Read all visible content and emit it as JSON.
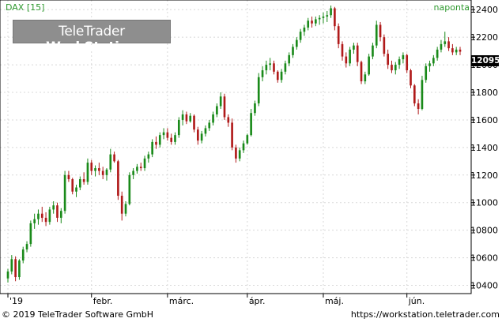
{
  "header": {
    "symbol": "DAX [15]",
    "period": "naponta"
  },
  "logo": {
    "brand": "TeleTrader",
    "product": "WorkStation"
  },
  "footer": {
    "copyright": "© 2019 TeleTrader Software GmbH",
    "website": "https://workstation.teletrader.com"
  },
  "last_price": "12095",
  "colors": {
    "up": "#1a8a1a",
    "down": "#b01a1a",
    "accent_text": "#2f9a2f",
    "grid": "#d8d8d8",
    "axis": "#000000"
  },
  "chart_data": {
    "type": "candlestick",
    "title": "DAX [15]",
    "interval": "naponta",
    "ylim": [
      10340,
      12470
    ],
    "y_ticks": [
      10400,
      10600,
      10800,
      11000,
      11200,
      11400,
      11600,
      11800,
      12000,
      12200,
      12400
    ],
    "x_ticks": [
      {
        "label": "'19",
        "index": 0
      },
      {
        "label": "febr.",
        "index": 22
      },
      {
        "label": "márc.",
        "index": 42
      },
      {
        "label": "ápr.",
        "index": 63
      },
      {
        "label": "máj.",
        "index": 83
      },
      {
        "label": "jún.",
        "index": 105
      }
    ],
    "grid": true,
    "last_value": 12095,
    "ohlc": [
      [
        10450,
        10520,
        10420,
        10500
      ],
      [
        10500,
        10620,
        10480,
        10590
      ],
      [
        10590,
        10610,
        10430,
        10460
      ],
      [
        10460,
        10590,
        10440,
        10580
      ],
      [
        10580,
        10680,
        10560,
        10660
      ],
      [
        10660,
        10720,
        10640,
        10700
      ],
      [
        10700,
        10870,
        10680,
        10850
      ],
      [
        10850,
        10920,
        10810,
        10880
      ],
      [
        10880,
        10950,
        10840,
        10920
      ],
      [
        10920,
        10970,
        10860,
        10890
      ],
      [
        10890,
        10930,
        10830,
        10860
      ],
      [
        10860,
        10970,
        10840,
        10950
      ],
      [
        10950,
        11010,
        10920,
        10980
      ],
      [
        10980,
        11000,
        10860,
        10890
      ],
      [
        10890,
        10960,
        10850,
        10940
      ],
      [
        10940,
        11230,
        10920,
        11200
      ],
      [
        11200,
        11230,
        11150,
        11170
      ],
      [
        11170,
        11180,
        11060,
        11080
      ],
      [
        11080,
        11130,
        11040,
        11110
      ],
      [
        11110,
        11190,
        11090,
        11170
      ],
      [
        11170,
        11220,
        11130,
        11150
      ],
      [
        11150,
        11320,
        11130,
        11290
      ],
      [
        11290,
        11310,
        11200,
        11230
      ],
      [
        11230,
        11270,
        11190,
        11250
      ],
      [
        11250,
        11290,
        11200,
        11230
      ],
      [
        11230,
        11260,
        11170,
        11200
      ],
      [
        11200,
        11250,
        11160,
        11240
      ],
      [
        11240,
        11390,
        11220,
        11350
      ],
      [
        11350,
        11370,
        11290,
        11300
      ],
      [
        11300,
        11310,
        11020,
        11050
      ],
      [
        11050,
        11080,
        10870,
        10920
      ],
      [
        10920,
        11010,
        10900,
        10990
      ],
      [
        10990,
        11220,
        10980,
        11200
      ],
      [
        11200,
        11250,
        11170,
        11230
      ],
      [
        11230,
        11280,
        11210,
        11260
      ],
      [
        11260,
        11290,
        11230,
        11250
      ],
      [
        11250,
        11340,
        11230,
        11320
      ],
      [
        11320,
        11370,
        11290,
        11350
      ],
      [
        11350,
        11460,
        11330,
        11440
      ],
      [
        11440,
        11480,
        11390,
        11420
      ],
      [
        11420,
        11510,
        11400,
        11490
      ],
      [
        11490,
        11540,
        11460,
        11510
      ],
      [
        11510,
        11540,
        11450,
        11470
      ],
      [
        11470,
        11500,
        11420,
        11440
      ],
      [
        11440,
        11510,
        11420,
        11490
      ],
      [
        11490,
        11620,
        11470,
        11600
      ],
      [
        11600,
        11670,
        11560,
        11640
      ],
      [
        11640,
        11660,
        11570,
        11590
      ],
      [
        11590,
        11650,
        11580,
        11630
      ],
      [
        11630,
        11640,
        11510,
        11530
      ],
      [
        11530,
        11550,
        11420,
        11450
      ],
      [
        11450,
        11520,
        11430,
        11500
      ],
      [
        11500,
        11560,
        11480,
        11540
      ],
      [
        11540,
        11600,
        11520,
        11580
      ],
      [
        11580,
        11660,
        11560,
        11640
      ],
      [
        11640,
        11720,
        11620,
        11700
      ],
      [
        11700,
        11800,
        11680,
        11770
      ],
      [
        11770,
        11790,
        11600,
        11620
      ],
      [
        11620,
        11640,
        11550,
        11580
      ],
      [
        11580,
        11610,
        11380,
        11400
      ],
      [
        11400,
        11420,
        11290,
        11320
      ],
      [
        11320,
        11400,
        11300,
        11380
      ],
      [
        11380,
        11450,
        11360,
        11430
      ],
      [
        11430,
        11500,
        11420,
        11490
      ],
      [
        11490,
        11680,
        11480,
        11650
      ],
      [
        11650,
        11740,
        11630,
        11720
      ],
      [
        11720,
        11940,
        11700,
        11910
      ],
      [
        11910,
        11990,
        11880,
        11960
      ],
      [
        11960,
        12030,
        11930,
        12000
      ],
      [
        12000,
        12050,
        11960,
        12010
      ],
      [
        12010,
        12030,
        11930,
        11950
      ],
      [
        11950,
        11960,
        11870,
        11890
      ],
      [
        11890,
        11970,
        11870,
        11950
      ],
      [
        11950,
        12030,
        11930,
        12010
      ],
      [
        12010,
        12090,
        11990,
        12070
      ],
      [
        12070,
        12150,
        12050,
        12130
      ],
      [
        12130,
        12200,
        12110,
        12180
      ],
      [
        12180,
        12260,
        12160,
        12240
      ],
      [
        12240,
        12290,
        12210,
        12270
      ],
      [
        12270,
        12340,
        12250,
        12320
      ],
      [
        12320,
        12350,
        12270,
        12300
      ],
      [
        12300,
        12350,
        12280,
        12330
      ],
      [
        12330,
        12360,
        12290,
        12340
      ],
      [
        12340,
        12380,
        12300,
        12350
      ],
      [
        12350,
        12390,
        12310,
        12360
      ],
      [
        12360,
        12430,
        12340,
        12410
      ],
      [
        12410,
        12420,
        12250,
        12280
      ],
      [
        12280,
        12300,
        12120,
        12150
      ],
      [
        12150,
        12170,
        12030,
        12060
      ],
      [
        12060,
        12090,
        11980,
        12010
      ],
      [
        12010,
        12130,
        11990,
        12110
      ],
      [
        12110,
        12160,
        12080,
        12140
      ],
      [
        12140,
        12160,
        11990,
        12020
      ],
      [
        12020,
        12030,
        11860,
        11880
      ],
      [
        11880,
        11950,
        11860,
        11930
      ],
      [
        11930,
        12080,
        11920,
        12060
      ],
      [
        12060,
        12160,
        12040,
        12140
      ],
      [
        12140,
        12320,
        12120,
        12290
      ],
      [
        12290,
        12310,
        12170,
        12200
      ],
      [
        12200,
        12220,
        12060,
        12080
      ],
      [
        12080,
        12110,
        11970,
        12000
      ],
      [
        12000,
        12030,
        11940,
        11960
      ],
      [
        11960,
        12020,
        11930,
        12000
      ],
      [
        12000,
        12060,
        11970,
        12040
      ],
      [
        12040,
        12090,
        12010,
        12070
      ],
      [
        12070,
        12080,
        11940,
        11960
      ],
      [
        11960,
        11970,
        11830,
        11850
      ],
      [
        11850,
        11860,
        11700,
        11720
      ],
      [
        11720,
        11750,
        11640,
        11680
      ],
      [
        11680,
        11920,
        11670,
        11890
      ],
      [
        11890,
        12010,
        11870,
        11990
      ],
      [
        11990,
        12030,
        11950,
        12010
      ],
      [
        12010,
        12070,
        11990,
        12050
      ],
      [
        12050,
        12130,
        12030,
        12110
      ],
      [
        12110,
        12180,
        12090,
        12150
      ],
      [
        12150,
        12240,
        12130,
        12170
      ],
      [
        12170,
        12200,
        12100,
        12120
      ],
      [
        12120,
        12150,
        12070,
        12090
      ],
      [
        12090,
        12130,
        12070,
        12110
      ],
      [
        12110,
        12130,
        12070,
        12095
      ]
    ]
  }
}
